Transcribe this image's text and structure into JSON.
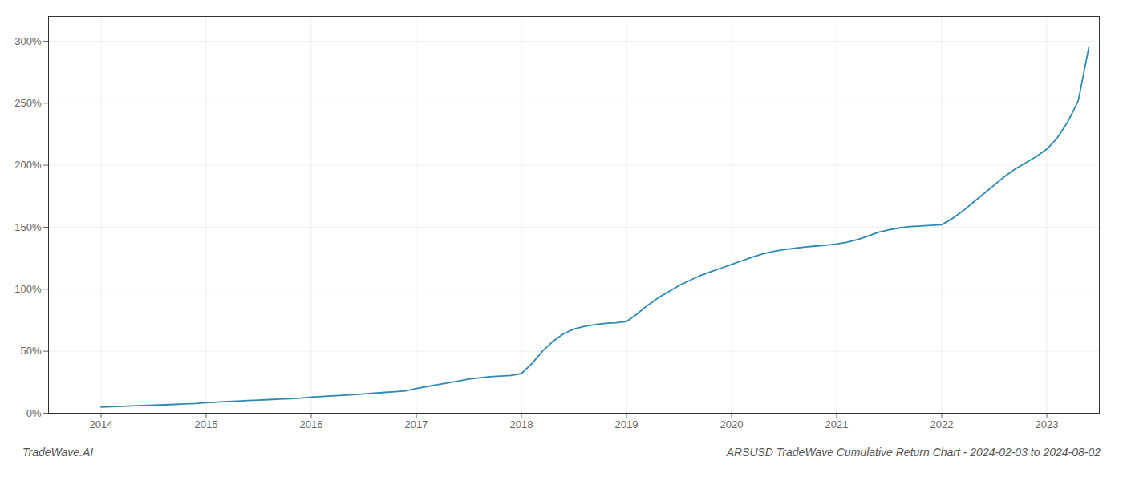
{
  "chart_data": {
    "type": "line",
    "title": "ARSUSD TradeWave Cumulative Return Chart - 2024-02-03 to 2024-08-02",
    "annotations": [
      "TradeWave.AI"
    ],
    "color": "#2e8ab5",
    "grid": true,
    "x": [
      2014.0,
      2014.1,
      2014.2,
      2014.3,
      2014.4,
      2014.5,
      2014.6,
      2014.7,
      2014.8,
      2014.9,
      2015.0,
      2015.1,
      2015.2,
      2015.3,
      2015.4,
      2015.5,
      2015.6,
      2015.7,
      2015.8,
      2015.9,
      2016.0,
      2016.1,
      2016.2,
      2016.3,
      2016.4,
      2016.5,
      2016.6,
      2016.7,
      2016.8,
      2016.9,
      2017.0,
      2017.1,
      2017.2,
      2017.3,
      2017.4,
      2017.5,
      2017.6,
      2017.7,
      2017.8,
      2017.9,
      2018.0,
      2018.1,
      2018.2,
      2018.3,
      2018.4,
      2018.5,
      2018.6,
      2018.7,
      2018.8,
      2018.9,
      2019.0,
      2019.1,
      2019.2,
      2019.3,
      2019.4,
      2019.5,
      2019.6,
      2019.7,
      2019.8,
      2019.9,
      2020.0,
      2020.1,
      2020.2,
      2020.3,
      2020.4,
      2020.5,
      2020.6,
      2020.7,
      2020.8,
      2020.9,
      2021.0,
      2021.1,
      2021.2,
      2021.3,
      2021.4,
      2021.5,
      2021.6,
      2021.7,
      2021.8,
      2021.9,
      2022.0,
      2022.1,
      2022.2,
      2022.3,
      2022.4,
      2022.5,
      2022.6,
      2022.7,
      2022.8,
      2022.9,
      2023.0,
      2023.1,
      2023.2,
      2023.3,
      2023.4
    ],
    "values": [
      5.0,
      5.3,
      5.6,
      5.9,
      6.2,
      6.5,
      6.8,
      7.1,
      7.5,
      7.9,
      8.5,
      9.0,
      9.4,
      9.8,
      10.2,
      10.6,
      11.0,
      11.4,
      11.8,
      12.2,
      13.0,
      13.5,
      14.0,
      14.5,
      15.0,
      15.6,
      16.2,
      16.8,
      17.4,
      18.0,
      20.0,
      21.5,
      23.0,
      24.5,
      26.0,
      27.5,
      28.5,
      29.5,
      30.0,
      30.5,
      32.0,
      40.0,
      50.0,
      58.0,
      64.0,
      68.0,
      70.0,
      71.5,
      72.5,
      73.0,
      74.0,
      80.0,
      87.0,
      93.0,
      98.0,
      103.0,
      107.0,
      111.0,
      114.0,
      117.0,
      120.0,
      123.0,
      126.0,
      128.5,
      130.5,
      132.0,
      133.0,
      134.0,
      134.8,
      135.5,
      136.5,
      138.0,
      140.0,
      143.0,
      146.0,
      148.0,
      149.5,
      150.5,
      151.0,
      151.5,
      152.0,
      157.0,
      163.0,
      170.0,
      177.0,
      184.0,
      191.0,
      197.0,
      202.0,
      207.0,
      213.0,
      222.0,
      235.0,
      252.0,
      295.0
    ],
    "xlim": [
      2013.5,
      2023.5
    ],
    "xticks": [
      2014,
      2015,
      2016,
      2017,
      2018,
      2019,
      2020,
      2021,
      2022,
      2023
    ],
    "ylim": [
      0,
      320
    ],
    "yticks": [
      {
        "value": 0,
        "label": "0%"
      },
      {
        "value": 50,
        "label": "50%"
      },
      {
        "value": 100,
        "label": "100%"
      },
      {
        "value": 150,
        "label": "150%"
      },
      {
        "value": 200,
        "label": "200%"
      },
      {
        "value": 250,
        "label": "250%"
      },
      {
        "value": 300,
        "label": "300%"
      }
    ]
  }
}
